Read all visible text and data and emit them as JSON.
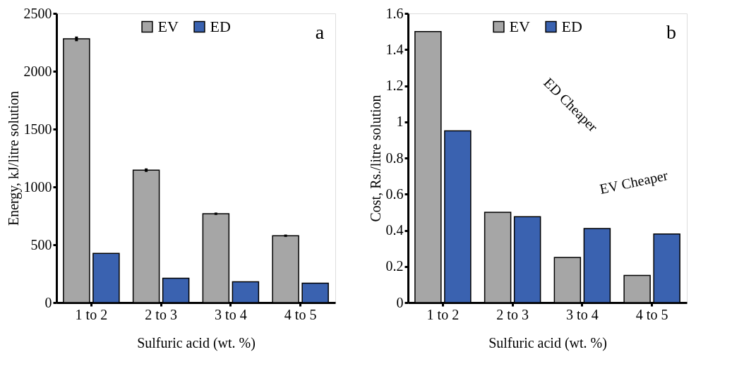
{
  "chart_data": [
    {
      "type": "bar",
      "categories": [
        "1 to 2",
        "2 to 3",
        "3 to 4",
        "4 to 5"
      ],
      "xlabel": "Sulfuric acid (wt. %)",
      "ylabel": "Energy,  kJ/litre solution",
      "series": [
        {
          "name": "EV",
          "color": "#a6a6a6",
          "values": [
            2280,
            1145,
            768,
            578
          ],
          "errors": [
            20,
            15,
            10,
            10
          ]
        },
        {
          "name": "ED",
          "color": "#3a62b0",
          "values": [
            425,
            210,
            180,
            168
          ]
        }
      ],
      "ylim": [
        0,
        2500
      ],
      "yticks": [
        0,
        500,
        1000,
        1500,
        2000,
        2500
      ],
      "grid": false,
      "legend": "top",
      "annotations": [
        "a"
      ]
    },
    {
      "type": "bar",
      "categories": [
        "1 to 2",
        "2 to 3",
        "3 to 4",
        "4 to 5"
      ],
      "xlabel": "Sulfuric acid (wt. %)",
      "ylabel": "Cost, Rs./litre solution",
      "series": [
        {
          "name": "EV",
          "color": "#a6a6a6",
          "values": [
            1.5,
            0.5,
            0.25,
            0.15
          ]
        },
        {
          "name": "ED",
          "color": "#3a62b0",
          "values": [
            0.95,
            0.475,
            0.41,
            0.38
          ]
        }
      ],
      "ylim": [
        0,
        1.6
      ],
      "yticks": [
        0,
        0.2,
        0.4,
        0.6,
        0.8,
        1,
        1.2,
        1.4,
        1.6
      ],
      "grid": false,
      "legend": "top",
      "annotations": [
        "b",
        "ED Cheaper",
        "EV Cheaper"
      ]
    }
  ]
}
